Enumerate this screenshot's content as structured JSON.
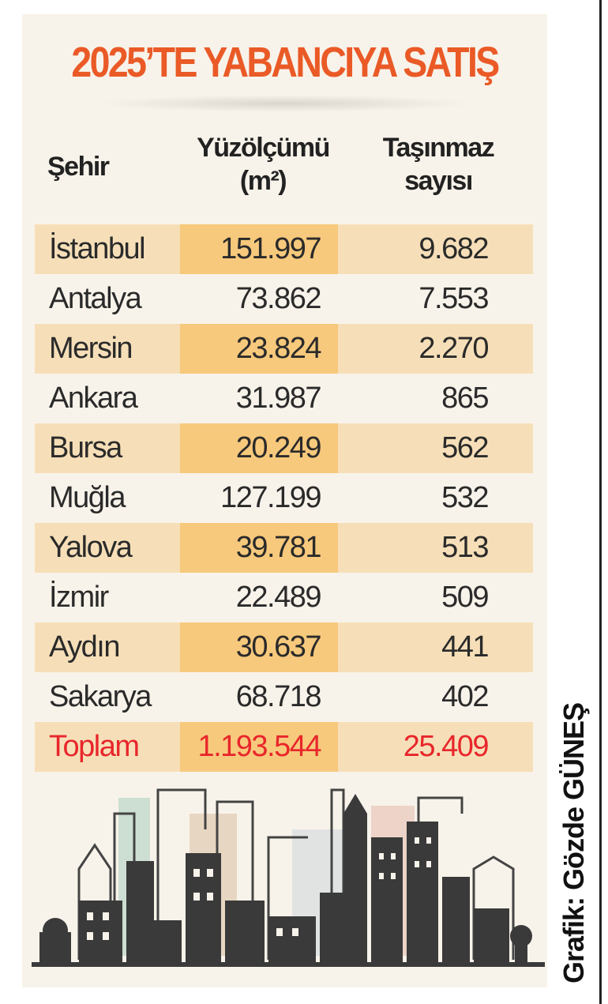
{
  "title": "2025’TE YABANCIYA SATIŞ",
  "columns": {
    "city": "Şehir",
    "area": "Yüzölçümü (m²)",
    "count": "Taşınmaz sayısı"
  },
  "rows": [
    {
      "city": "İstanbul",
      "area": "151.997",
      "count": "9.682"
    },
    {
      "city": "Antalya",
      "area": "73.862",
      "count": "7.553"
    },
    {
      "city": "Mersin",
      "area": "23.824",
      "count": "2.270"
    },
    {
      "city": "Ankara",
      "area": "31.987",
      "count": "865"
    },
    {
      "city": "Bursa",
      "area": "20.249",
      "count": "562"
    },
    {
      "city": "Muğla",
      "area": "127.199",
      "count": "532"
    },
    {
      "city": "Yalova",
      "area": "39.781",
      "count": "513"
    },
    {
      "city": "İzmir",
      "area": "22.489",
      "count": "509"
    },
    {
      "city": "Aydın",
      "area": "30.637",
      "count": "441"
    },
    {
      "city": "Sakarya",
      "area": "68.718",
      "count": "402"
    }
  ],
  "total": {
    "city": "Toplam",
    "area": "1.193.544",
    "count": "25.409"
  },
  "credit": "Grafik: Gözde GÜNEŞ",
  "colors": {
    "title": "#ea5a27",
    "total": "#e8262b",
    "row_shade": "#f6dfb8",
    "area_shade": "#f7c97c",
    "background": "#f8f3ea"
  },
  "illustration": "city-skyline"
}
